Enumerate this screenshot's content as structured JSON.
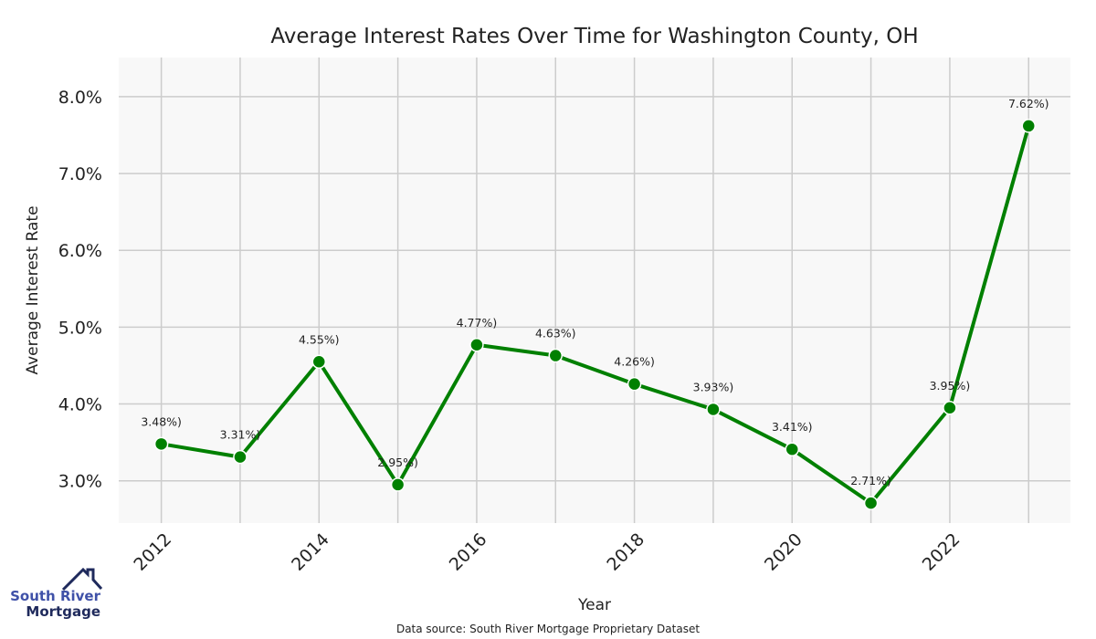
{
  "chart_data": {
    "type": "line",
    "title": "Average Interest Rates Over Time for Washington County, OH",
    "xlabel": "Year",
    "ylabel": "Average Interest Rate",
    "x": [
      2012,
      2013,
      2014,
      2015,
      2016,
      2017,
      2018,
      2019,
      2020,
      2021,
      2022,
      2023
    ],
    "series": [
      {
        "name": "Average Interest Rate",
        "values": [
          3.48,
          3.31,
          4.55,
          2.95,
          4.77,
          4.63,
          4.26,
          3.93,
          3.41,
          2.71,
          3.95,
          7.62
        ],
        "labels": [
          "3.48%)",
          "3.31%)",
          "4.55%)",
          "2.95%)",
          "4.77%)",
          "4.63%)",
          "4.26%)",
          "3.93%)",
          "3.41%)",
          "2.71%)",
          "3.95%)",
          "7.62%)"
        ],
        "color": "#008000"
      }
    ],
    "xticks": [
      2012,
      2014,
      2016,
      2018,
      2020,
      2022
    ],
    "yticks": [
      3.0,
      4.0,
      5.0,
      6.0,
      7.0,
      8.0
    ],
    "ytick_labels": [
      "3.0%",
      "4.0%",
      "5.0%",
      "6.0%",
      "7.0%",
      "8.0%"
    ],
    "xlim": [
      2011.46,
      2023.53
    ],
    "ylim": [
      2.45,
      8.51
    ],
    "grid": true,
    "legend": "none"
  },
  "footer": {
    "source": "Data source: South River Mortgage Proprietary Dataset",
    "logo_line1": "South River",
    "logo_line2": "Mortgage"
  },
  "colors": {
    "plot_bg": "#f8f8f8",
    "grid": "#cccccc",
    "logo_light": "#3f51a8",
    "logo_dark": "#1f2a5c"
  }
}
